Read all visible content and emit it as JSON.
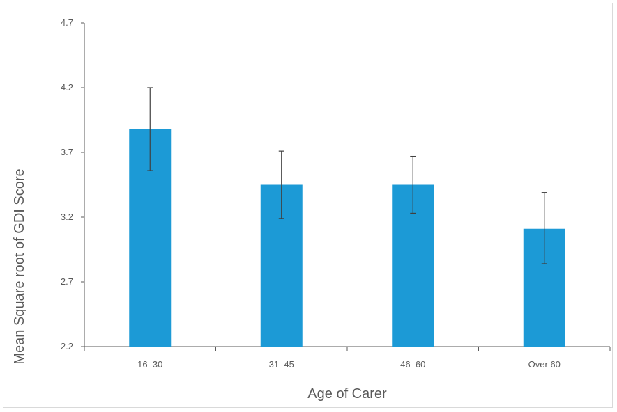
{
  "chart_data": {
    "type": "bar",
    "title": "",
    "xlabel": "Age of Carer",
    "ylabel": "Mean Square root of GDI Score",
    "categories": [
      "16–30",
      "31–45",
      "46–60",
      "Over 60"
    ],
    "values": [
      3.88,
      3.45,
      3.45,
      3.11
    ],
    "error_low": [
      3.56,
      3.19,
      3.23,
      2.84
    ],
    "error_high": [
      4.2,
      3.71,
      3.67,
      3.39
    ],
    "ylim": [
      2.2,
      4.7
    ],
    "yticks": [
      "2.2",
      "2.7",
      "3.2",
      "3.7",
      "4.2",
      "4.7"
    ],
    "grid": false,
    "legend": "none",
    "bar_color": "#1c9ad6",
    "errorbar_color": "#404040",
    "axis_color": "#595959"
  }
}
